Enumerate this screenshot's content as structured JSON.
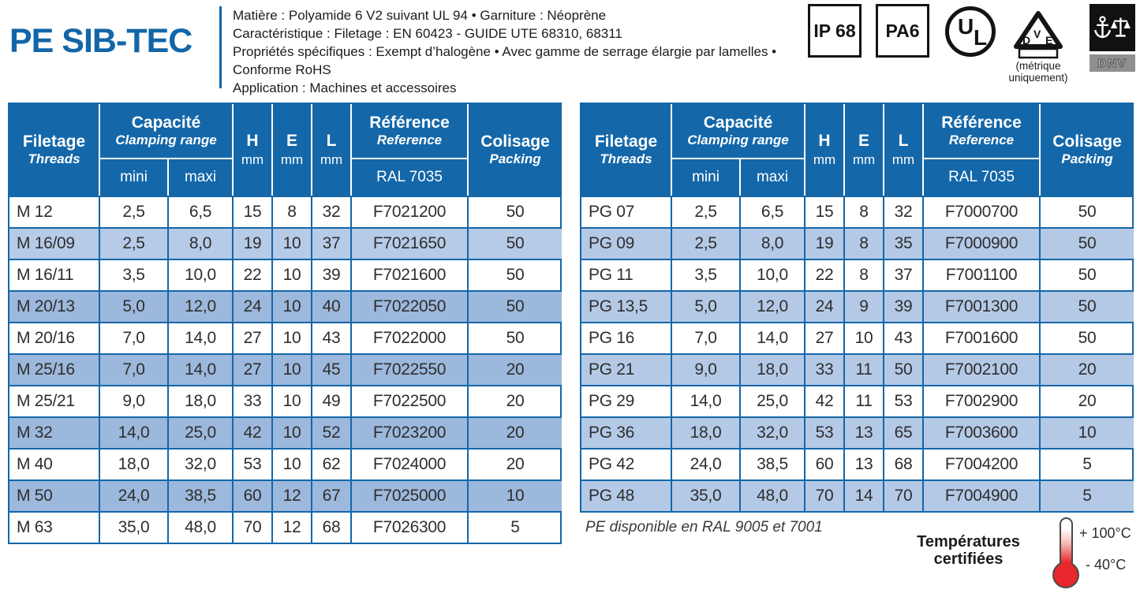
{
  "header": {
    "title": "PE SIB-TEC",
    "info_lines": [
      "Matière : Polyamide 6 V2 suivant UL 94 • Garniture : Néoprène",
      "Caractéristique : Filetage : EN 60423 - GUIDE UTE 68310, 68311",
      "Propriétés spécifiques : Exempt d’halogène • Avec gamme de serrage élargie par lamelles • Conforme RoHS",
      "Application : Machines et accessoires"
    ],
    "badges": {
      "ip": "IP 68",
      "pa": "PA6",
      "ul_u": "U",
      "ul_l": "L",
      "vde_d": "D",
      "vde_v": "V",
      "vde_e": "E",
      "vde_note_1": "(métrique",
      "vde_note_2": "uniquement)",
      "dnv": "DNV"
    }
  },
  "table_headers": {
    "filetage": "Filetage",
    "threads": "Threads",
    "capacite": "Capacité",
    "clamping_range": "Clamping range",
    "mini": "mini",
    "maxi": "maxi",
    "h": "H",
    "e": "E",
    "l": "L",
    "mm": "mm",
    "reference_fr": "Référence",
    "reference_en": "Reference",
    "ral": "RAL 7035",
    "colisage": "Colisage",
    "packing": "Packing"
  },
  "metric_table": {
    "rows": [
      [
        "M 12",
        "2,5",
        "6,5",
        "15",
        "8",
        "32",
        "F7021200",
        "50"
      ],
      [
        "M 16/09",
        "2,5",
        "8,0",
        "19",
        "10",
        "37",
        "F7021650",
        "50"
      ],
      [
        "M 16/11",
        "3,5",
        "10,0",
        "22",
        "10",
        "39",
        "F7021600",
        "50"
      ],
      [
        "M 20/13",
        "5,0",
        "12,0",
        "24",
        "10",
        "40",
        "F7022050",
        "50"
      ],
      [
        "M 20/16",
        "7,0",
        "14,0",
        "27",
        "10",
        "43",
        "F7022000",
        "50"
      ],
      [
        "M 25/16",
        "7,0",
        "14,0",
        "27",
        "10",
        "45",
        "F7022550",
        "20"
      ],
      [
        "M 25/21",
        "9,0",
        "18,0",
        "33",
        "10",
        "49",
        "F7022500",
        "20"
      ],
      [
        "M 32",
        "14,0",
        "25,0",
        "42",
        "10",
        "52",
        "F7023200",
        "20"
      ],
      [
        "M 40",
        "18,0",
        "32,0",
        "53",
        "10",
        "62",
        "F7024000",
        "20"
      ],
      [
        "M 50",
        "24,0",
        "38,5",
        "60",
        "12",
        "67",
        "F7025000",
        "10"
      ],
      [
        "M 63",
        "35,0",
        "48,0",
        "70",
        "12",
        "68",
        "F7026300",
        "5"
      ]
    ]
  },
  "pg_table": {
    "rows": [
      [
        "PG 07",
        "2,5",
        "6,5",
        "15",
        "8",
        "32",
        "F7000700",
        "50"
      ],
      [
        "PG 09",
        "2,5",
        "8,0",
        "19",
        "8",
        "35",
        "F7000900",
        "50"
      ],
      [
        "PG 11",
        "3,5",
        "10,0",
        "22",
        "8",
        "37",
        "F7001100",
        "50"
      ],
      [
        "PG 13,5",
        "5,0",
        "12,0",
        "24",
        "9",
        "39",
        "F7001300",
        "50"
      ],
      [
        "PG 16",
        "7,0",
        "14,0",
        "27",
        "10",
        "43",
        "F7001600",
        "50"
      ],
      [
        "PG 21",
        "9,0",
        "18,0",
        "33",
        "11",
        "50",
        "F7002100",
        "20"
      ],
      [
        "PG 29",
        "14,0",
        "25,0",
        "42",
        "11",
        "53",
        "F7002900",
        "20"
      ],
      [
        "PG 36",
        "18,0",
        "32,0",
        "53",
        "13",
        "65",
        "F7003600",
        "10"
      ],
      [
        "PG 42",
        "24,0",
        "38,5",
        "60",
        "13",
        "68",
        "F7004200",
        "5"
      ],
      [
        "PG 48",
        "35,0",
        "48,0",
        "70",
        "14",
        "70",
        "F7004900",
        "5"
      ]
    ]
  },
  "footer": {
    "ral_note": "PE disponible en RAL 9005 et 7001",
    "temp_line1": "Températures",
    "temp_line2": "certifiées",
    "temp_max": "+ 100°C",
    "temp_min": "- 40°C"
  },
  "colors": {
    "brand_blue": "#1467a9",
    "row_blue": "#9cb8dc",
    "row_blue_light": "#b5cae6",
    "thermo_red": "#e8282c"
  }
}
